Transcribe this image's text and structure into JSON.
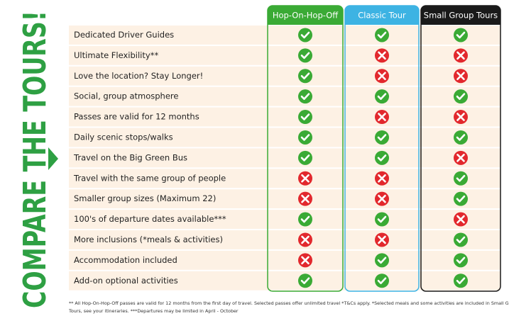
{
  "sidebar": {
    "title": "COMPARE THE TOURS!"
  },
  "table": {
    "columns": [
      "Hop-On-Hop-Off",
      "Classic Tour",
      "Small Group Tours"
    ],
    "rows": [
      {
        "feature": "Dedicated Driver Guides",
        "included": [
          true,
          true,
          true
        ]
      },
      {
        "feature": "Ultimate Flexibility**",
        "included": [
          true,
          false,
          false
        ]
      },
      {
        "feature": "Love the location? Stay Longer!",
        "included": [
          true,
          false,
          false
        ]
      },
      {
        "feature": "Social, group atmosphere",
        "included": [
          true,
          true,
          true
        ]
      },
      {
        "feature": "Passes are valid for 12 months",
        "included": [
          true,
          false,
          false
        ]
      },
      {
        "feature": "Daily scenic stops/walks",
        "included": [
          true,
          true,
          true
        ]
      },
      {
        "feature": "Travel on the Big Green Bus",
        "included": [
          true,
          true,
          false
        ]
      },
      {
        "feature": "Travel with the same group of people",
        "included": [
          false,
          false,
          true
        ]
      },
      {
        "feature": "Smaller group sizes (Maximum 22)",
        "included": [
          false,
          false,
          true
        ]
      },
      {
        "feature": "100's of departure dates available***",
        "included": [
          true,
          true,
          false
        ]
      },
      {
        "feature": "More inclusions (*meals & activities)",
        "included": [
          false,
          false,
          true
        ]
      },
      {
        "feature": "Accommodation included",
        "included": [
          false,
          true,
          true
        ]
      },
      {
        "feature": "Add-on optional activities",
        "included": [
          true,
          true,
          true
        ]
      }
    ]
  },
  "footnote": [
    "** All Hop-On-Hop-Off passes are valid for 12 months from the first day of travel. Selected passes offer unlimited travel *T&Cs apply. *Selected meals and some activities are included in Small Group",
    "Tours, see your itineraries. ***Departures may be limited in April - October"
  ]
}
